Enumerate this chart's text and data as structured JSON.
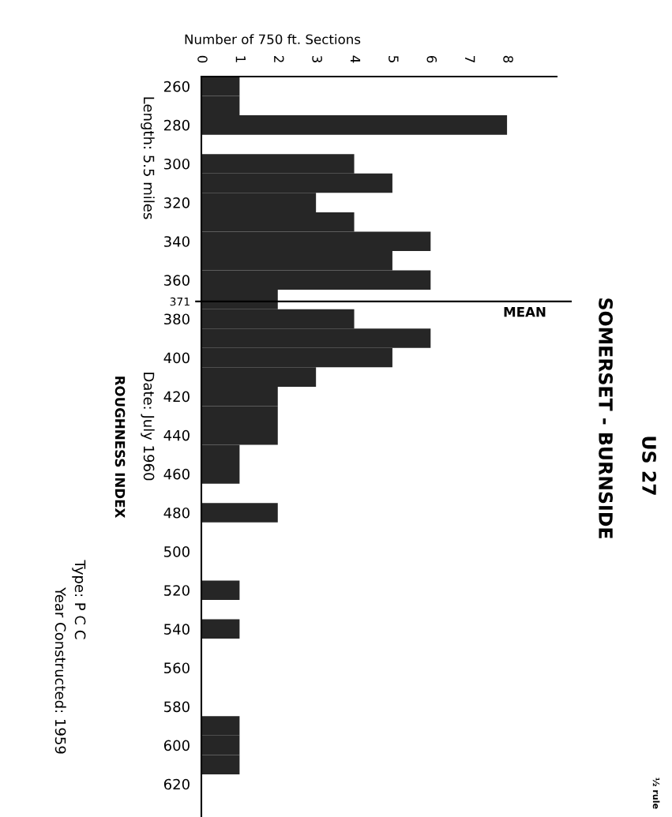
{
  "chart_data": {
    "type": "histogram",
    "orientation": "horizontal",
    "title": "US 27",
    "subtitle": "SOMERSET - BURNSIDE",
    "xlabel": "Number of 750 ft. Sections",
    "ylabel": "ROUGHNESS INDEX",
    "bins": [
      255,
      265,
      275,
      285,
      295,
      305,
      315,
      325,
      335,
      345,
      355,
      365,
      375,
      385,
      395,
      405,
      415,
      425,
      435,
      445,
      455,
      465,
      475,
      485,
      495,
      505,
      515,
      525,
      535,
      545,
      555,
      565,
      575,
      585,
      595,
      605,
      615
    ],
    "values": [
      1,
      1,
      8,
      0,
      4,
      5,
      3,
      4,
      6,
      5,
      6,
      2,
      4,
      6,
      5,
      3,
      2,
      2,
      2,
      1,
      1,
      0,
      2,
      0,
      0,
      0,
      1,
      0,
      1,
      0,
      0,
      0,
      0,
      1,
      1,
      1
    ],
    "color": "#262626",
    "xlim": [
      0,
      9.3
    ],
    "xticks": [
      0,
      1,
      2,
      3,
      4,
      5,
      6,
      7,
      8
    ],
    "ylim": [
      637,
      255
    ],
    "yticks": [
      260,
      280,
      300,
      320,
      340,
      360,
      {
        "value": 371,
        "label": "371"
      },
      380,
      400,
      420,
      440,
      460,
      480,
      500,
      520,
      540,
      560,
      580,
      600,
      620
    ],
    "ref_lines": [
      {
        "axis": "y",
        "value": 371,
        "label": "MEAN",
        "color": "#000000"
      }
    ],
    "annotations": [
      "Length: 5.5 miles",
      "Date: July 1960",
      "Type: P C C",
      "Year Constructed: 1959",
      "½ rule"
    ],
    "grid": false
  }
}
